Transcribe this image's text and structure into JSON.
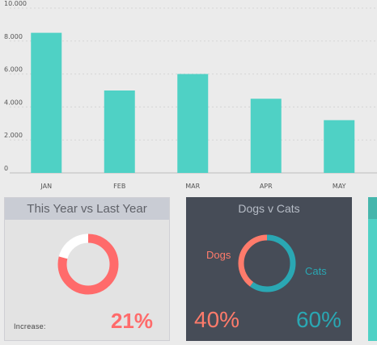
{
  "chart_data": {
    "type": "bar",
    "categories": [
      "JAN",
      "FEB",
      "MAR",
      "APR",
      "MAY"
    ],
    "values": [
      8500,
      5000,
      6000,
      4500,
      3200
    ],
    "ylim": [
      0,
      10000
    ],
    "yticks": [
      "0",
      "2.000",
      "4.000",
      "6.000",
      "8.000",
      "10.000"
    ],
    "grid": true,
    "colors": {
      "bar": "#4fd1c5",
      "grid": "#d6d6d6",
      "axis": "#bdbdbd"
    }
  },
  "year_card": {
    "title": "This Year vs Last Year",
    "increase_label": "Increase:",
    "increase_value": "21%",
    "ring_fraction": 0.79,
    "colors": {
      "fill": "#ff6b6b",
      "rest": "#ffffff"
    }
  },
  "pets_card": {
    "title": "Dogs v Cats",
    "dogs_label": "Dogs",
    "cats_label": "Cats",
    "dogs_value": "40%",
    "cats_value": "60%",
    "dogs_fraction": 0.4,
    "cats_fraction": 0.6,
    "colors": {
      "dogs": "#ff7b6b",
      "cats": "#2aa7b3"
    }
  }
}
